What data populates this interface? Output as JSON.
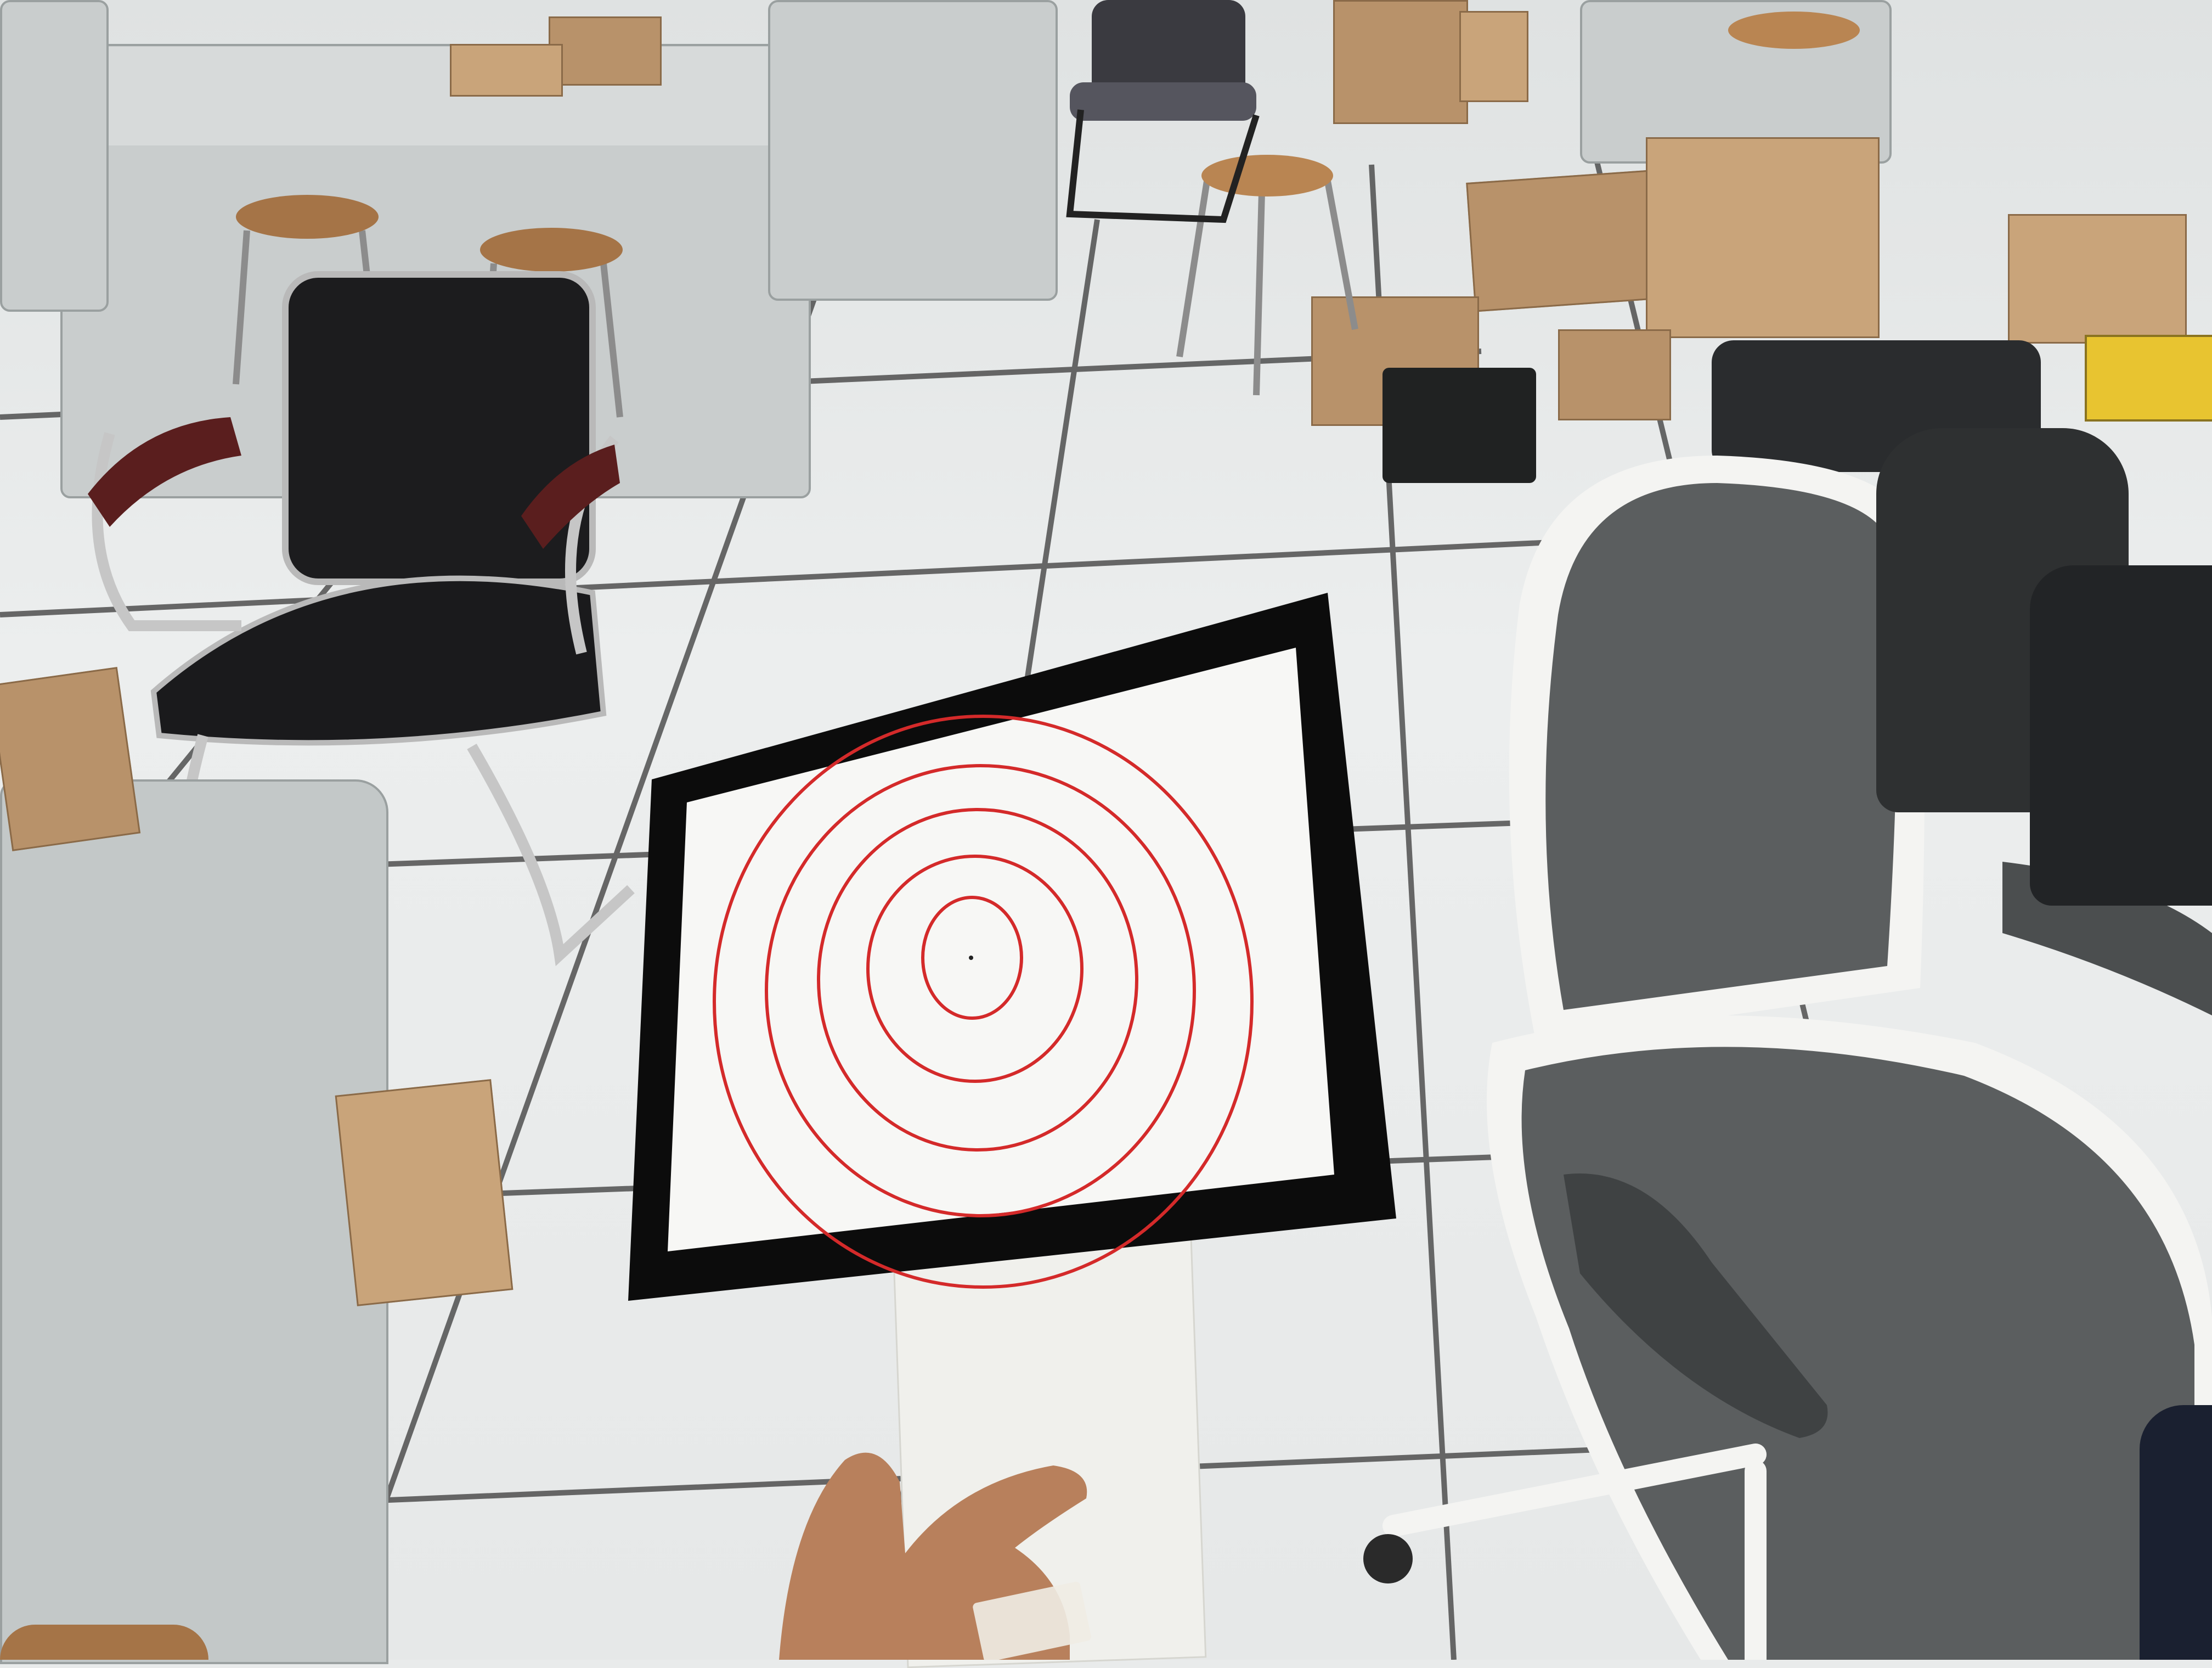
{
  "scene": {
    "description_tag": "",
    "colors": {
      "floor": "#e6e8e8",
      "tile_line": "#2b2b2b",
      "desk": "#c9cdcd",
      "cardboard": "#b8926a",
      "chair_black": "#1c1c1e",
      "chair_grey": "#5b5e5f",
      "chair_white": "#f4f4f2",
      "target_border": "#0c0c0c",
      "target_paper": "#f7f7f5",
      "target_rings": "#d42a2a",
      "foam": "#f0f0ec",
      "skin": "#b8805c"
    },
    "target": {
      "ring_count": 5,
      "has_center_dot": true
    }
  }
}
